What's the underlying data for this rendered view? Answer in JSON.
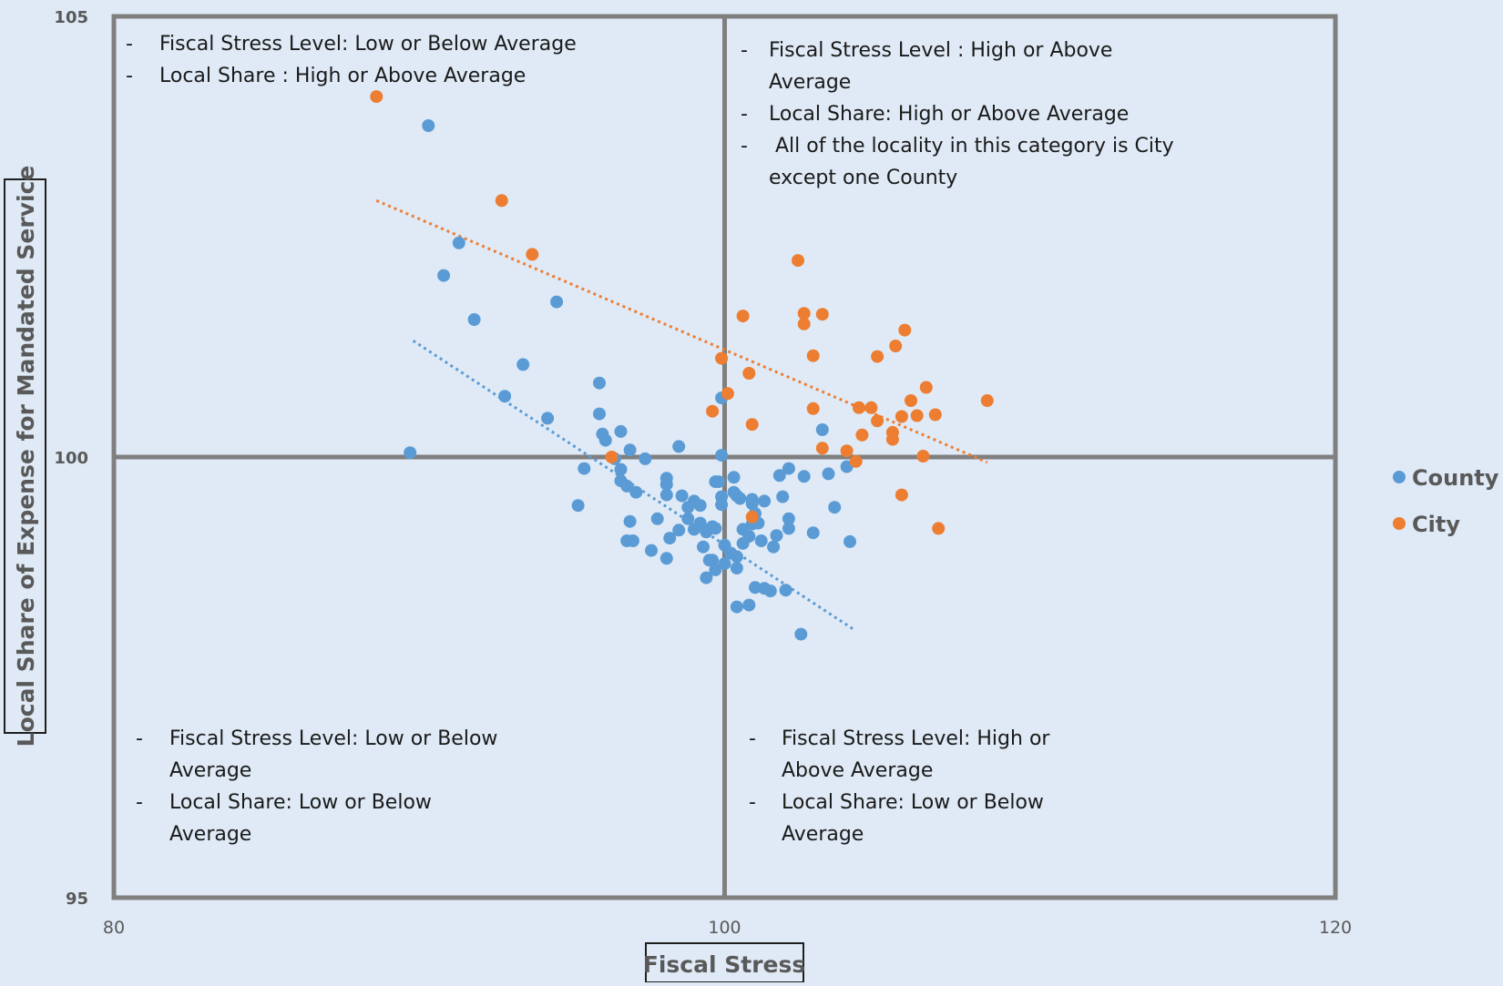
{
  "chart_data": {
    "type": "scatter",
    "title": "",
    "xlabel": "Fiscal Stress",
    "ylabel": "Local Share of Expense for Mandated Service",
    "xlim": [
      80,
      120
    ],
    "ylim": [
      95,
      105
    ],
    "x_ticks": [
      "80",
      "100",
      "120"
    ],
    "y_ticks": [
      "95",
      "100",
      "105"
    ],
    "divider_x": 100,
    "divider_y": 100,
    "grid": false,
    "legend_position": "right",
    "series": [
      {
        "name": "County",
        "color": "#5b9bd5",
        "trendline": {
          "x": [
            89.8,
            104.2
          ],
          "y": [
            101.32,
            98.05
          ]
        },
        "points": [
          [
            90.3,
            103.76
          ],
          [
            89.7,
            100.05
          ],
          [
            91.3,
            102.43
          ],
          [
            90.8,
            102.06
          ],
          [
            91.8,
            101.56
          ],
          [
            94.5,
            101.76
          ],
          [
            93.4,
            101.05
          ],
          [
            92.8,
            100.69
          ],
          [
            94.2,
            100.44
          ],
          [
            95.9,
            100.84
          ],
          [
            95.9,
            100.49
          ],
          [
            95.4,
            99.87
          ],
          [
            95.2,
            99.45
          ],
          [
            96.0,
            100.26
          ],
          [
            96.1,
            100.19
          ],
          [
            96.6,
            100.29
          ],
          [
            96.4,
            99.98
          ],
          [
            96.6,
            99.86
          ],
          [
            96.6,
            99.73
          ],
          [
            96.9,
            100.08
          ],
          [
            97.1,
            99.6
          ],
          [
            96.9,
            99.27
          ],
          [
            96.8,
            99.67
          ],
          [
            97.4,
            99.98
          ],
          [
            96.8,
            99.05
          ],
          [
            97.0,
            99.05
          ],
          [
            97.6,
            98.94
          ],
          [
            97.8,
            99.3
          ],
          [
            98.1,
            98.85
          ],
          [
            98.1,
            99.76
          ],
          [
            98.1,
            99.57
          ],
          [
            98.1,
            99.69
          ],
          [
            98.2,
            99.08
          ],
          [
            98.5,
            99.17
          ],
          [
            98.6,
            99.56
          ],
          [
            98.8,
            99.3
          ],
          [
            98.5,
            100.12
          ],
          [
            98.8,
            99.43
          ],
          [
            99.0,
            99.5
          ],
          [
            99.0,
            99.18
          ],
          [
            99.2,
            99.25
          ],
          [
            99.2,
            99.45
          ],
          [
            99.4,
            99.15
          ],
          [
            99.5,
            98.83
          ],
          [
            99.7,
            99.19
          ],
          [
            99.7,
            99.72
          ],
          [
            99.9,
            99.46
          ],
          [
            99.7,
            98.72
          ],
          [
            99.8,
            99.72
          ],
          [
            100.0,
            99.0
          ],
          [
            99.6,
            98.83
          ],
          [
            100.3,
            99.77
          ],
          [
            99.3,
            98.98
          ],
          [
            99.4,
            98.63
          ],
          [
            99.6,
            99.21
          ],
          [
            99.9,
            99.55
          ],
          [
            99.9,
            100.67
          ],
          [
            99.9,
            100.02
          ],
          [
            100.3,
            99.6
          ],
          [
            100.4,
            99.56
          ],
          [
            100.5,
            99.53
          ],
          [
            100.0,
            98.79
          ],
          [
            100.2,
            98.91
          ],
          [
            100.4,
            98.87
          ],
          [
            100.4,
            98.74
          ],
          [
            100.6,
            99.02
          ],
          [
            100.8,
            99.1
          ],
          [
            100.6,
            99.18
          ],
          [
            100.9,
            99.24
          ],
          [
            101.0,
            99.36
          ],
          [
            101.1,
            99.25
          ],
          [
            100.9,
            99.52
          ],
          [
            100.9,
            99.47
          ],
          [
            101.0,
            98.52
          ],
          [
            101.2,
            99.05
          ],
          [
            100.4,
            98.3
          ],
          [
            101.3,
            98.51
          ],
          [
            101.5,
            98.48
          ],
          [
            100.8,
            98.32
          ],
          [
            101.6,
            98.98
          ],
          [
            101.3,
            99.5
          ],
          [
            101.7,
            99.11
          ],
          [
            101.9,
            99.55
          ],
          [
            101.8,
            99.79
          ],
          [
            102.1,
            99.19
          ],
          [
            102.1,
            99.3
          ],
          [
            102.1,
            99.87
          ],
          [
            102.6,
            99.78
          ],
          [
            102.0,
            98.49
          ],
          [
            102.5,
            97.99
          ],
          [
            102.9,
            99.14
          ],
          [
            103.4,
            99.81
          ],
          [
            103.2,
            100.31
          ],
          [
            103.6,
            99.43
          ],
          [
            104.0,
            99.89
          ],
          [
            104.1,
            99.04
          ]
        ]
      },
      {
        "name": "City",
        "color": "#ed7d31",
        "trendline": {
          "x": [
            88.6,
            108.6
          ],
          "y": [
            102.91,
            99.94
          ]
        },
        "points": [
          [
            88.6,
            104.09
          ],
          [
            92.7,
            102.91
          ],
          [
            93.7,
            102.3
          ],
          [
            96.3,
            100.0
          ],
          [
            99.6,
            100.52
          ],
          [
            99.9,
            101.12
          ],
          [
            100.1,
            100.72
          ],
          [
            100.6,
            101.6
          ],
          [
            100.9,
            99.32
          ],
          [
            100.8,
            100.95
          ],
          [
            100.9,
            100.37
          ],
          [
            102.6,
            101.63
          ],
          [
            102.6,
            101.51
          ],
          [
            102.4,
            102.23
          ],
          [
            102.9,
            101.15
          ],
          [
            102.9,
            100.55
          ],
          [
            103.2,
            100.1
          ],
          [
            103.2,
            101.62
          ],
          [
            104.0,
            100.07
          ],
          [
            104.4,
            100.56
          ],
          [
            104.3,
            99.95
          ],
          [
            104.5,
            100.25
          ],
          [
            104.8,
            100.56
          ],
          [
            105.0,
            100.41
          ],
          [
            105.0,
            101.14
          ],
          [
            105.6,
            101.26
          ],
          [
            105.5,
            100.2
          ],
          [
            105.5,
            100.28
          ],
          [
            105.9,
            101.44
          ],
          [
            105.8,
            100.46
          ],
          [
            105.8,
            99.57
          ],
          [
            106.1,
            100.64
          ],
          [
            106.3,
            100.47
          ],
          [
            106.5,
            100.01
          ],
          [
            106.6,
            100.79
          ],
          [
            106.9,
            100.48
          ],
          [
            107.0,
            99.19
          ],
          [
            108.6,
            100.64
          ]
        ]
      }
    ],
    "annotations": [
      {
        "lines": [
          {
            "bullet": "-",
            "text": "Fiscal Stress Level: Low or Below Average"
          },
          {
            "bullet": "-",
            "text": "Local Share : High or Above Average"
          }
        ]
      },
      {
        "lines": [
          {
            "bullet": "-",
            "text": "Fiscal Stress Level : High or Above"
          },
          {
            "bullet": "",
            "text": "Average"
          },
          {
            "bullet": "-",
            "text": "Local Share: High or Above Average"
          },
          {
            "bullet": "-",
            "text": " All of the locality in this category is City"
          },
          {
            "bullet": "",
            "text": "except one County"
          }
        ]
      },
      {
        "lines": [
          {
            "bullet": "-",
            "text": "Fiscal Stress Level: Low or Below"
          },
          {
            "bullet": "",
            "text": "Average"
          },
          {
            "bullet": "-",
            "text": "Local Share: Low or Below"
          },
          {
            "bullet": "",
            "text": "Average"
          }
        ]
      },
      {
        "lines": [
          {
            "bullet": "-",
            "text": "Fiscal Stress Level: High or"
          },
          {
            "bullet": "",
            "text": "Above Average"
          },
          {
            "bullet": "-",
            "text": "Local Share: Low or Below"
          },
          {
            "bullet": "",
            "text": "Average"
          }
        ]
      }
    ],
    "legend": {
      "county_label": "County",
      "city_label": "City"
    }
  }
}
